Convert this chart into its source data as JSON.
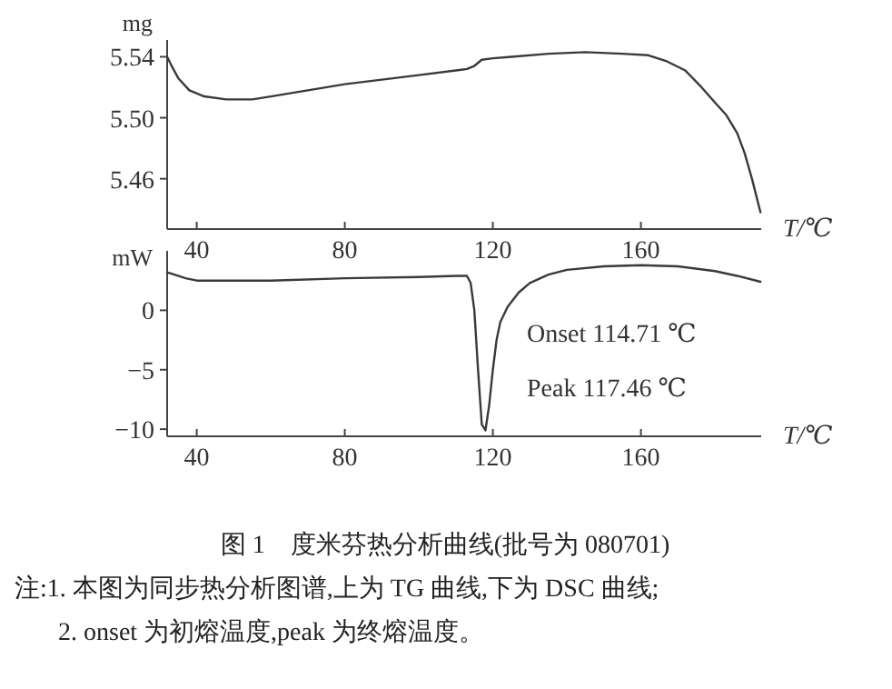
{
  "chart_data": [
    {
      "type": "line",
      "ylabel": "mg",
      "xlabel": "T/℃",
      "xlim": [
        32,
        192.5
      ],
      "ylim": [
        5.427,
        5.551
      ],
      "xticks": [
        40,
        80,
        120,
        160
      ],
      "yticks": [
        {
          "value": 5.46,
          "label": "5.46"
        },
        {
          "value": 5.5,
          "label": "5.50"
        },
        {
          "value": 5.54,
          "label": "5.54"
        }
      ],
      "grid": false,
      "series": [
        {
          "color": "#3a3a3a",
          "x": [
            32,
            33,
            35,
            38,
            42,
            48,
            55,
            60,
            70,
            80,
            90,
            100,
            110,
            113,
            115,
            117,
            120,
            125,
            135,
            145,
            155,
            162,
            167,
            172,
            176,
            180,
            183,
            186,
            188,
            190,
            192.3
          ],
          "values": [
            5.54,
            5.535,
            5.526,
            5.518,
            5.514,
            5.512,
            5.512,
            5.514,
            5.518,
            5.522,
            5.525,
            5.528,
            5.531,
            5.532,
            5.534,
            5.538,
            5.539,
            5.54,
            5.542,
            5.543,
            5.542,
            5.541,
            5.537,
            5.531,
            5.521,
            5.51,
            5.502,
            5.49,
            5.477,
            5.46,
            5.438
          ]
        }
      ]
    },
    {
      "type": "line",
      "ylabel": "mW",
      "xlabel": "T/℃",
      "xlim": [
        32,
        192.5
      ],
      "ylim": [
        -10.6,
        5
      ],
      "xticks": [
        40,
        80,
        120,
        160
      ],
      "yticks": [
        {
          "value": -10,
          "label": "−10"
        },
        {
          "value": -5,
          "label": "−5"
        },
        0
      ],
      "grid": false,
      "title": "图 1　度米芬热分析曲线(批号为 080701)",
      "annotations": [
        "Onset 114.71 ℃",
        "Peak 117.46 ℃",
        "注:1. 本图为同步热分析图谱,上为 TG 曲线,下为 DSC 曲线;",
        "2. onset 为初熔温度,peak 为终熔温度。"
      ],
      "series": [
        {
          "color": "#3a3a3a",
          "x": [
            32,
            34,
            37,
            40,
            50,
            60,
            80,
            100,
            110,
            113,
            114,
            115,
            116,
            117,
            118,
            119,
            120,
            121,
            122,
            124,
            127,
            130,
            135,
            140,
            150,
            160,
            170,
            180,
            186,
            192.3
          ],
          "values": [
            3.2,
            3.0,
            2.7,
            2.5,
            2.5,
            2.5,
            2.7,
            2.8,
            2.9,
            2.9,
            2.3,
            0,
            -5,
            -9.6,
            -10.1,
            -8,
            -5,
            -2.5,
            -1,
            0.3,
            1.5,
            2.3,
            3.0,
            3.4,
            3.7,
            3.8,
            3.7,
            3.3,
            2.9,
            2.4
          ]
        }
      ]
    }
  ]
}
